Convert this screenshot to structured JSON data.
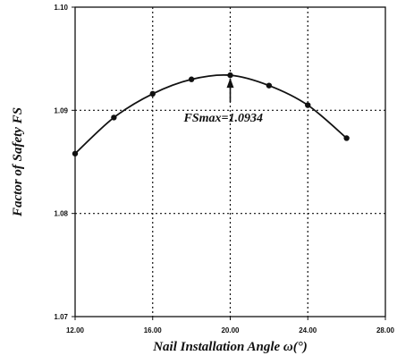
{
  "chart_data": {
    "type": "line",
    "xlabel": "Nail Installation Angle ω(°)",
    "ylabel": "Factor of Safety  FS",
    "xlim": [
      12,
      28
    ],
    "ylim": [
      1.07,
      1.1
    ],
    "x_ticks": [
      "12.00",
      "16.00",
      "20.00",
      "24.00",
      "28.00"
    ],
    "y_ticks": [
      "1.07",
      "1.08",
      "1.09",
      "1.10"
    ],
    "x_tick_values": [
      12,
      16,
      20,
      24,
      28
    ],
    "y_tick_values": [
      1.07,
      1.08,
      1.09,
      1.1
    ],
    "grid": true,
    "grid_style": "dotted",
    "series": [
      {
        "x": [
          12,
          14,
          16,
          18,
          20,
          22,
          24,
          26
        ],
        "y": [
          1.0858,
          1.0893,
          1.0916,
          1.093,
          1.0934,
          1.0924,
          1.0905,
          1.0873
        ],
        "marker": "circle",
        "color": "#111111"
      }
    ],
    "annotation": {
      "text": "FSmax=1.0934",
      "x": 20,
      "y": 1.0934
    }
  }
}
